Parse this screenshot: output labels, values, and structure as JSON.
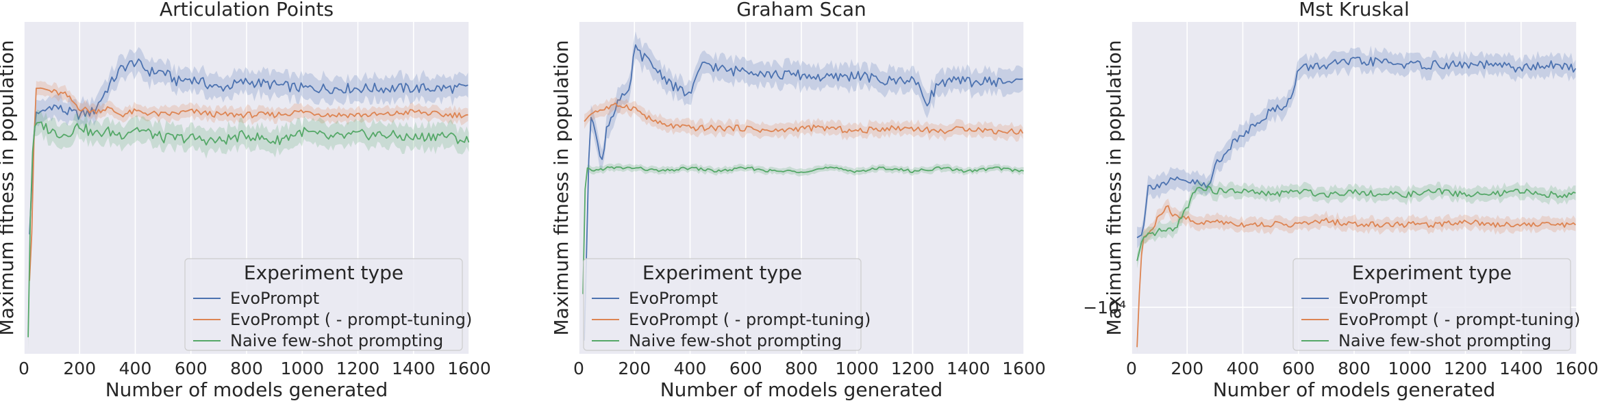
{
  "chart_data": [
    {
      "type": "line",
      "title": "Articulation Points",
      "xlabel": "Number of models generated",
      "ylabel": "Maximum fitness in population",
      "xlim": [
        0,
        1600
      ],
      "xticks": [
        0,
        200,
        400,
        600,
        800,
        1000,
        1200,
        1400,
        1600
      ],
      "ylim": [
        0,
        1
      ],
      "yticks": [],
      "grid": true,
      "legend": {
        "title": "Experiment type",
        "placement": "lower-right"
      },
      "series": [
        {
          "name": "EvoPrompt",
          "color": "#4c72b0",
          "x": [
            20,
            40,
            60,
            100,
            150,
            200,
            250,
            300,
            350,
            400,
            450,
            500,
            550,
            600,
            700,
            800,
            900,
            1000,
            1100,
            1200,
            1300,
            1400,
            1500,
            1600
          ],
          "y": [
            0.36,
            0.73,
            0.72,
            0.75,
            0.73,
            0.72,
            0.73,
            0.8,
            0.86,
            0.88,
            0.85,
            0.85,
            0.82,
            0.83,
            0.8,
            0.82,
            0.81,
            0.8,
            0.8,
            0.8,
            0.8,
            0.8,
            0.8,
            0.8
          ],
          "band": 0.035
        },
        {
          "name": "EvoPrompt ( - prompt-tuning)",
          "color": "#dd8452",
          "x": [
            20,
            30,
            40,
            60,
            100,
            150,
            200,
            250,
            300,
            350,
            400,
            500,
            600,
            700,
            800,
            900,
            1000,
            1100,
            1200,
            1300,
            1400,
            1500,
            1600
          ],
          "y": [
            0.22,
            0.4,
            0.8,
            0.8,
            0.79,
            0.78,
            0.74,
            0.73,
            0.74,
            0.72,
            0.73,
            0.72,
            0.73,
            0.72,
            0.72,
            0.72,
            0.73,
            0.72,
            0.72,
            0.72,
            0.73,
            0.72,
            0.72
          ],
          "band": 0.02
        },
        {
          "name": "Naive few-shot prompting",
          "color": "#55a868",
          "x": [
            15,
            25,
            35,
            50,
            100,
            150,
            200,
            250,
            300,
            350,
            400,
            500,
            600,
            700,
            800,
            900,
            1000,
            1100,
            1200,
            1300,
            1400,
            1500,
            1600
          ],
          "y": [
            0.05,
            0.5,
            0.68,
            0.7,
            0.67,
            0.66,
            0.69,
            0.66,
            0.67,
            0.66,
            0.68,
            0.65,
            0.65,
            0.64,
            0.66,
            0.64,
            0.67,
            0.65,
            0.66,
            0.66,
            0.65,
            0.66,
            0.64
          ],
          "band": 0.035
        }
      ]
    },
    {
      "type": "line",
      "title": "Graham Scan",
      "xlabel": "Number of models generated",
      "ylabel": "Maximum fitness in population",
      "xlim": [
        0,
        1600
      ],
      "xticks": [
        0,
        200,
        400,
        600,
        800,
        1000,
        1200,
        1400,
        1600
      ],
      "ylim": [
        0,
        1
      ],
      "yticks": [],
      "grid": true,
      "legend": {
        "title": "Experiment type",
        "placement": "lower-left"
      },
      "series": [
        {
          "name": "EvoPrompt",
          "color": "#4c72b0",
          "x": [
            20,
            40,
            60,
            80,
            100,
            140,
            180,
            200,
            250,
            300,
            350,
            400,
            450,
            500,
            550,
            600,
            700,
            800,
            900,
            1000,
            1100,
            1200,
            1250,
            1300,
            1400,
            1500,
            1600
          ],
          "y": [
            0.04,
            0.72,
            0.68,
            0.56,
            0.68,
            0.76,
            0.78,
            0.92,
            0.88,
            0.84,
            0.8,
            0.78,
            0.88,
            0.86,
            0.85,
            0.86,
            0.84,
            0.84,
            0.83,
            0.84,
            0.82,
            0.83,
            0.76,
            0.82,
            0.82,
            0.82,
            0.82
          ],
          "band": 0.035
        },
        {
          "name": "EvoPrompt ( - prompt-tuning)",
          "color": "#dd8452",
          "x": [
            20,
            40,
            60,
            100,
            150,
            200,
            250,
            300,
            400,
            500,
            600,
            700,
            800,
            900,
            1000,
            1100,
            1200,
            1300,
            1400,
            1500,
            1600
          ],
          "y": [
            0.7,
            0.72,
            0.73,
            0.74,
            0.75,
            0.74,
            0.71,
            0.69,
            0.68,
            0.68,
            0.68,
            0.67,
            0.68,
            0.68,
            0.67,
            0.68,
            0.68,
            0.67,
            0.68,
            0.67,
            0.67
          ],
          "band": 0.02
        },
        {
          "name": "Naive few-shot prompting",
          "color": "#55a868",
          "x": [
            15,
            20,
            25,
            35,
            50,
            100,
            200,
            300,
            400,
            500,
            600,
            700,
            800,
            900,
            1000,
            1100,
            1200,
            1300,
            1400,
            1500,
            1600
          ],
          "y": [
            0.18,
            0.4,
            0.56,
            0.56,
            0.55,
            0.56,
            0.56,
            0.55,
            0.56,
            0.55,
            0.56,
            0.55,
            0.55,
            0.56,
            0.55,
            0.56,
            0.55,
            0.56,
            0.55,
            0.56,
            0.55
          ],
          "band": 0.01
        }
      ]
    },
    {
      "type": "line",
      "title": "Mst Kruskal",
      "xlabel": "Number of models generated",
      "ylabel": "Maximum fitness in population",
      "xlim": [
        0,
        1600
      ],
      "xticks": [
        0,
        200,
        400,
        600,
        800,
        1000,
        1200,
        1400,
        1600
      ],
      "ylim": [
        0,
        1
      ],
      "yscale": "symlog",
      "yticks": [
        {
          "value": 0.14,
          "label": "−10⁴"
        }
      ],
      "grid": true,
      "legend": {
        "title": "Experiment type",
        "placement": "lower-right"
      },
      "series": [
        {
          "name": "EvoPrompt",
          "color": "#4c72b0",
          "x": [
            20,
            40,
            60,
            80,
            100,
            150,
            200,
            250,
            280,
            300,
            350,
            400,
            450,
            500,
            550,
            580,
            600,
            700,
            800,
            900,
            1000,
            1100,
            1200,
            1300,
            1400,
            1500,
            1600
          ],
          "y": [
            0.35,
            0.36,
            0.5,
            0.51,
            0.51,
            0.52,
            0.52,
            0.51,
            0.5,
            0.57,
            0.62,
            0.66,
            0.7,
            0.73,
            0.75,
            0.78,
            0.86,
            0.87,
            0.88,
            0.88,
            0.87,
            0.87,
            0.87,
            0.87,
            0.86,
            0.87,
            0.86
          ],
          "band": 0.03
        },
        {
          "name": "EvoPrompt ( - prompt-tuning)",
          "color": "#dd8452",
          "x": [
            20,
            30,
            40,
            60,
            80,
            100,
            130,
            160,
            200,
            250,
            300,
            400,
            500,
            600,
            700,
            800,
            900,
            1000,
            1100,
            1200,
            1300,
            1400,
            1500,
            1600
          ],
          "y": [
            0.02,
            0.22,
            0.35,
            0.36,
            0.38,
            0.42,
            0.44,
            0.41,
            0.41,
            0.39,
            0.4,
            0.39,
            0.39,
            0.39,
            0.4,
            0.39,
            0.39,
            0.39,
            0.39,
            0.4,
            0.39,
            0.39,
            0.39,
            0.39
          ],
          "band": 0.02
        },
        {
          "name": "Naive few-shot prompting",
          "color": "#55a868",
          "x": [
            20,
            40,
            80,
            100,
            150,
            200,
            230,
            260,
            300,
            400,
            500,
            600,
            700,
            800,
            900,
            1000,
            1100,
            1200,
            1300,
            1400,
            1500,
            1600
          ],
          "y": [
            0.28,
            0.35,
            0.36,
            0.37,
            0.37,
            0.44,
            0.5,
            0.5,
            0.49,
            0.49,
            0.48,
            0.49,
            0.48,
            0.49,
            0.48,
            0.48,
            0.49,
            0.48,
            0.48,
            0.49,
            0.48,
            0.48
          ],
          "band": 0.02
        }
      ]
    }
  ]
}
